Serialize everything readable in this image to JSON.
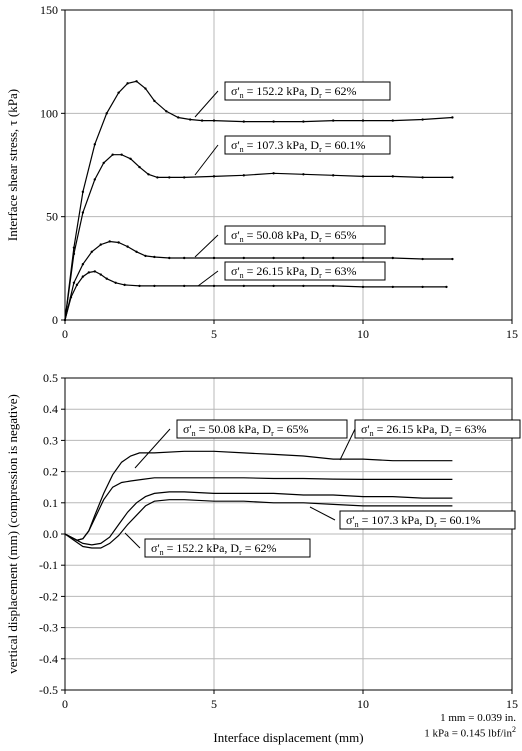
{
  "chart_data": [
    {
      "type": "line",
      "title": "",
      "xlabel": "",
      "ylabel": "Interface shear stress, τ (kPa)",
      "xlim": [
        0,
        15
      ],
      "ylim": [
        0,
        150
      ],
      "xticks": [
        "0",
        "5",
        "10",
        "15"
      ],
      "yticks": [
        "0",
        "50",
        "100",
        "150"
      ],
      "grid": true,
      "series": [
        {
          "name": "σ'n = 152.2 kPa, Dr = 62%",
          "label": {
            "sigma": "σ'",
            "sigma_sub": "n",
            "mid": " = 152.2 kPa, D",
            "d_sub": "r",
            "end": " = 62%"
          },
          "x": [
            0,
            0.3,
            0.6,
            1.0,
            1.4,
            1.8,
            2.1,
            2.4,
            2.7,
            3.0,
            3.4,
            3.8,
            4.2,
            4.6,
            5.0,
            6.0,
            7.0,
            8.0,
            9.0,
            10.0,
            11.0,
            12.0,
            13.0
          ],
          "y": [
            0,
            35,
            62,
            85,
            100,
            110,
            114.5,
            115.5,
            112,
            106,
            101,
            98,
            97,
            96.5,
            96.5,
            96,
            96,
            96,
            96.5,
            96.5,
            96.5,
            97,
            98
          ]
        },
        {
          "name": "σ'n = 107.3 kPa, Dr = 60.1%",
          "label": {
            "sigma": "σ'",
            "sigma_sub": "n",
            "mid": " = 107.3 kPa, D",
            "d_sub": "r",
            "end": " = 60.1%"
          },
          "x": [
            0,
            0.3,
            0.6,
            1.0,
            1.3,
            1.6,
            1.9,
            2.2,
            2.5,
            2.8,
            3.1,
            3.5,
            4.0,
            5.0,
            6.0,
            7.0,
            8.0,
            9.0,
            10.0,
            11.0,
            12.0,
            13.0
          ],
          "y": [
            0,
            32,
            52,
            68,
            76,
            80,
            80,
            78,
            74,
            70.5,
            69,
            69,
            69,
            69.5,
            70,
            71,
            70.5,
            70,
            69.5,
            69.5,
            69,
            69
          ]
        },
        {
          "name": "σ'n = 50.08 kPa, Dr = 65%",
          "label": {
            "sigma": "σ'",
            "sigma_sub": "n",
            "mid": " = 50.08 kPa, D",
            "d_sub": "r",
            "end": " = 65%"
          },
          "x": [
            0,
            0.3,
            0.6,
            0.9,
            1.2,
            1.5,
            1.8,
            2.1,
            2.4,
            2.7,
            3.0,
            3.5,
            4.0,
            5.0,
            6.0,
            7.0,
            8.0,
            9.0,
            10.0,
            11.0,
            12.0,
            13.0
          ],
          "y": [
            0,
            18,
            27,
            33,
            36.5,
            38,
            37.5,
            35.5,
            33,
            31,
            30.5,
            30,
            30,
            30,
            30,
            30,
            30,
            30,
            30,
            30,
            29.5,
            29.5
          ]
        },
        {
          "name": "σ'n = 26.15 kPa, Dr = 63%",
          "label": {
            "sigma": "σ'",
            "sigma_sub": "n",
            "mid": " = 26.15 kPa, D",
            "d_sub": "r",
            "end": " = 63%"
          },
          "x": [
            0,
            0.2,
            0.4,
            0.6,
            0.8,
            1.0,
            1.2,
            1.4,
            1.7,
            2.0,
            2.5,
            3.0,
            4.0,
            5.0,
            6.0,
            7.0,
            8.0,
            9.0,
            10.0,
            11.0,
            12.0,
            12.8
          ],
          "y": [
            0,
            11,
            17,
            21,
            23,
            23.5,
            22,
            20,
            18,
            17,
            16.5,
            16.5,
            16.5,
            16.5,
            16.5,
            16.5,
            16.5,
            16.5,
            16,
            16,
            16,
            16
          ]
        }
      ]
    },
    {
      "type": "line",
      "title": "",
      "xlabel": "Interface displacement (mm)",
      "ylabel": "vertical displacement (mm) (compression is negative)",
      "xlim": [
        0,
        15
      ],
      "ylim": [
        -0.5,
        0.5
      ],
      "xticks": [
        "0",
        "5",
        "10",
        "15"
      ],
      "yticks": [
        "-0.5",
        "-0.4",
        "-0.3",
        "-0.2",
        "-0.1",
        "0.0",
        "0.1",
        "0.2",
        "0.3",
        "0.4",
        "0.5"
      ],
      "grid": true,
      "series": [
        {
          "name": "σ'n = 50.08 kPa, Dr = 65%",
          "label": {
            "sigma": "σ'",
            "sigma_sub": "n",
            "mid": " = 50.08 kPa, D",
            "d_sub": "r",
            "end": " = 65%"
          },
          "x": [
            0,
            0.2,
            0.4,
            0.6,
            0.8,
            1.0,
            1.3,
            1.6,
            1.9,
            2.2,
            2.5,
            3.0,
            4.0,
            5.0,
            6.0,
            7.0,
            8.0,
            9.0,
            10.0,
            11.0,
            12.0,
            13.0
          ],
          "y": [
            0,
            -0.01,
            -0.02,
            -0.015,
            0.01,
            0.06,
            0.13,
            0.19,
            0.23,
            0.25,
            0.26,
            0.26,
            0.265,
            0.265,
            0.26,
            0.255,
            0.25,
            0.24,
            0.24,
            0.235,
            0.235,
            0.235
          ]
        },
        {
          "name": "σ'n = 26.15 kPa, Dr = 63%",
          "label": {
            "sigma": "σ'",
            "sigma_sub": "n",
            "mid": " = 26.15 kPa, D",
            "d_sub": "r",
            "end": " = 63%"
          },
          "x": [
            0,
            0.2,
            0.4,
            0.6,
            0.8,
            1.0,
            1.3,
            1.6,
            1.9,
            2.2,
            2.6,
            3.0,
            4.0,
            5.0,
            6.0,
            7.0,
            8.0,
            9.0,
            10.0,
            11.0,
            12.0,
            13.0
          ],
          "y": [
            0,
            -0.01,
            -0.02,
            -0.015,
            0.01,
            0.05,
            0.11,
            0.15,
            0.165,
            0.17,
            0.175,
            0.18,
            0.18,
            0.18,
            0.18,
            0.178,
            0.178,
            0.176,
            0.175,
            0.175,
            0.175,
            0.175
          ]
        },
        {
          "name": "σ'n = 107.3 kPa, Dr = 60.1%",
          "label": {
            "sigma": "σ'",
            "sigma_sub": "n",
            "mid": " = 107.3 kPa, D",
            "d_sub": "r",
            "end": " = 60.1%"
          },
          "x": [
            0,
            0.3,
            0.6,
            0.9,
            1.2,
            1.5,
            1.8,
            2.1,
            2.4,
            2.7,
            3.0,
            3.5,
            4.0,
            5.0,
            6.0,
            7.0,
            8.0,
            9.0,
            10.0,
            11.0,
            12.0,
            13.0
          ],
          "y": [
            0,
            -0.015,
            -0.03,
            -0.035,
            -0.03,
            -0.01,
            0.03,
            0.07,
            0.1,
            0.12,
            0.13,
            0.135,
            0.135,
            0.13,
            0.13,
            0.13,
            0.125,
            0.125,
            0.12,
            0.12,
            0.115,
            0.115
          ]
        },
        {
          "name": "σ'n = 152.2 kPa, Dr = 62%",
          "label": {
            "sigma": "σ'",
            "sigma_sub": "n",
            "mid": " = 152.2 kPa, D",
            "d_sub": "r",
            "end": " = 62%"
          },
          "x": [
            0,
            0.3,
            0.6,
            0.9,
            1.2,
            1.5,
            1.8,
            2.1,
            2.4,
            2.7,
            3.0,
            3.5,
            4.0,
            5.0,
            6.0,
            7.0,
            8.0,
            9.0,
            10.0,
            11.0,
            12.0,
            13.0
          ],
          "y": [
            0,
            -0.02,
            -0.04,
            -0.045,
            -0.045,
            -0.03,
            -0.005,
            0.03,
            0.06,
            0.09,
            0.105,
            0.11,
            0.11,
            0.105,
            0.105,
            0.1,
            0.1,
            0.095,
            0.09,
            0.09,
            0.09,
            0.09
          ]
        }
      ]
    }
  ],
  "units_note": {
    "line1": "1 mm = 0.039 in.",
    "line2_main": "1 kPa = 0.145 lbf/in",
    "line2_sup": "2"
  }
}
